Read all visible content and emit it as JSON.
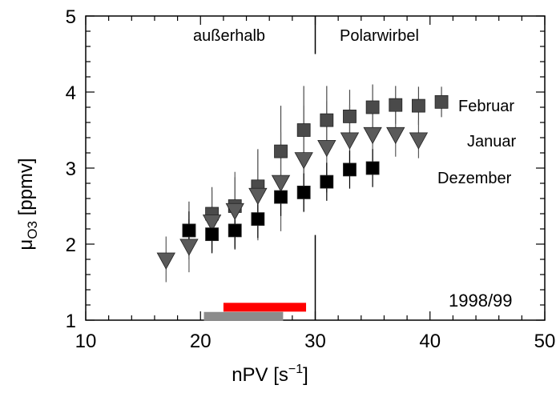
{
  "chart_data": {
    "type": "scatter",
    "xlabel": "nPV [s",
    "xlabel_sup": "−1",
    "xlabel_end": "]",
    "ylabel_mu": "μ",
    "ylabel_sub": "O3",
    "ylabel_rest": " [ppmv]",
    "xlim": [
      10,
      50
    ],
    "ylim": [
      1,
      5
    ],
    "x_ticks": [
      "10",
      "20",
      "30",
      "40",
      "50"
    ],
    "y_ticks": [
      "1",
      "2",
      "3",
      "4",
      "5"
    ],
    "divider_x": 30,
    "annotations": {
      "left_region": "außerhalb",
      "right_region": "Polarwirbel",
      "year": "1998/99"
    },
    "series": [
      {
        "name": "Februar",
        "marker": "square",
        "color": "#4a4a4a",
        "points": [
          {
            "x": 19,
            "y": 2.18,
            "err": 0.38
          },
          {
            "x": 21,
            "y": 2.4,
            "err": 0.35
          },
          {
            "x": 23,
            "y": 2.5,
            "err": 0.38
          },
          {
            "x": 25,
            "y": 2.76,
            "err": 0.48
          },
          {
            "x": 27,
            "y": 3.22,
            "err": 0.6
          },
          {
            "x": 29,
            "y": 3.5,
            "err": 0.58
          },
          {
            "x": 31,
            "y": 3.63,
            "err": 0.45
          },
          {
            "x": 33,
            "y": 3.68,
            "err": 0.35
          },
          {
            "x": 35,
            "y": 3.8,
            "err": 0.3
          },
          {
            "x": 37,
            "y": 3.83,
            "err": 0.25
          },
          {
            "x": 39,
            "y": 3.82,
            "err": 0.25
          },
          {
            "x": 41,
            "y": 3.87,
            "err": 0.2
          }
        ]
      },
      {
        "name": "Januar",
        "marker": "triangle-down",
        "color": "#5a5a5a",
        "points": [
          {
            "x": 17,
            "y": 1.8,
            "err": 0.3
          },
          {
            "x": 19,
            "y": 1.98,
            "err": 0.35
          },
          {
            "x": 21,
            "y": 2.3,
            "err": 0.4
          },
          {
            "x": 23,
            "y": 2.45,
            "err": 0.5
          },
          {
            "x": 25,
            "y": 2.65,
            "err": 0.6
          },
          {
            "x": 27,
            "y": 2.82,
            "err": 0.65
          },
          {
            "x": 29,
            "y": 3.12,
            "err": 0.7
          },
          {
            "x": 31,
            "y": 3.28,
            "err": 0.6
          },
          {
            "x": 33,
            "y": 3.38,
            "err": 0.45
          },
          {
            "x": 35,
            "y": 3.45,
            "err": 0.35
          },
          {
            "x": 37,
            "y": 3.45,
            "err": 0.3
          },
          {
            "x": 39,
            "y": 3.38,
            "err": 0.25
          }
        ]
      },
      {
        "name": "Dezember",
        "marker": "square",
        "color": "#000000",
        "points": [
          {
            "x": 19,
            "y": 2.18,
            "err": 0.25
          },
          {
            "x": 21,
            "y": 2.13,
            "err": 0.25
          },
          {
            "x": 23,
            "y": 2.18,
            "err": 0.25
          },
          {
            "x": 25,
            "y": 2.33,
            "err": 0.25
          },
          {
            "x": 27,
            "y": 2.62,
            "err": 0.25
          },
          {
            "x": 29,
            "y": 2.68,
            "err": 0.25
          },
          {
            "x": 31,
            "y": 2.82,
            "err": 0.25
          },
          {
            "x": 33,
            "y": 2.98,
            "err": 0.25
          },
          {
            "x": 35,
            "y": 3.0,
            "err": 0.25
          }
        ]
      }
    ],
    "bars": [
      {
        "x0": 22.0,
        "x1": 29.2,
        "y": 1.17,
        "color": "#ff0000"
      },
      {
        "x0": 20.3,
        "x1": 27.2,
        "y": 1.05,
        "color": "#8c8c8c"
      }
    ]
  }
}
